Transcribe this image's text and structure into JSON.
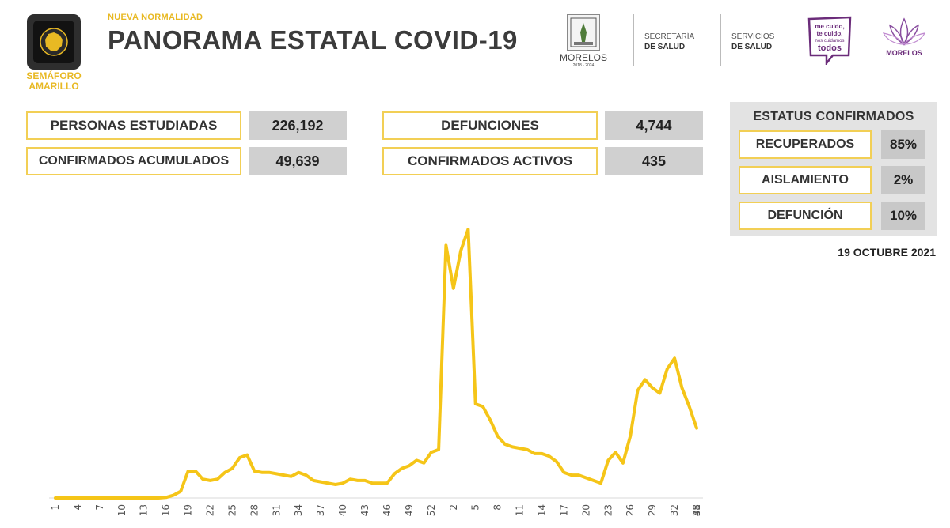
{
  "header": {
    "traffic_light_label_line1": "SEMÁFORO",
    "traffic_light_label_line2": "AMARILLO",
    "kicker": "NUEVA NORMALIDAD",
    "title": "PANORAMA ESTATAL COVID-19",
    "logo_morelos": "MORELOS",
    "logo_morelos_years": "2018 - 2024",
    "secretaria_line1": "SECRETARÍA",
    "secretaria_line2": "DE SALUD",
    "servicios_line1": "SERVICIOS",
    "servicios_line2": "DE SALUD",
    "campaign_line1": "me cuido,",
    "campaign_line2": "te cuido,",
    "campaign_line3": "nos cuidamos",
    "campaign_line4": "todos",
    "lotus_label": "MORELOS",
    "traffic_light_color": "#e8b923"
  },
  "stats": {
    "personas_estudiadas_label": "PERSONAS ESTUDIADAS",
    "personas_estudiadas_value": "226,192",
    "confirmados_acumulados_label": "CONFIRMADOS ACUMULADOS",
    "confirmados_acumulados_value": "49,639",
    "defunciones_label": "DEFUNCIONES",
    "defunciones_value": "4,744",
    "confirmados_activos_label": "CONFIRMADOS ACTIVOS",
    "confirmados_activos_value": "435"
  },
  "status": {
    "title": "ESTATUS CONFIRMADOS",
    "recuperados_label": "RECUPERADOS",
    "recuperados_value": "85%",
    "aislamiento_label": "AISLAMIENTO",
    "aislamiento_value": "2%",
    "defuncion_label": "DEFUNCIÓN",
    "defuncion_value": "10%"
  },
  "date": "19 OCTUBRE 2021",
  "chart_data": {
    "type": "line",
    "title": "",
    "xlabel": "",
    "ylabel": "",
    "line_color": "#f5c518",
    "grid": false,
    "ylim": [
      0,
      100
    ],
    "x_tick_labels": [
      "1",
      "4",
      "7",
      "10",
      "13",
      "16",
      "19",
      "22",
      "25",
      "28",
      "31",
      "34",
      "37",
      "40",
      "43",
      "46",
      "49",
      "52",
      "2",
      "5",
      "8",
      "11",
      "14",
      "17",
      "20",
      "23",
      "26",
      "29",
      "32",
      "35",
      "38",
      "41"
    ],
    "values": [
      0,
      0,
      0,
      0,
      0,
      0,
      0,
      0,
      0,
      0,
      0,
      0,
      0,
      0,
      0,
      0.2,
      1,
      2.5,
      10,
      10,
      7,
      6.5,
      7,
      9.5,
      11,
      15,
      16,
      10,
      9.5,
      9.5,
      9,
      8.5,
      8,
      9.5,
      8.5,
      6.5,
      6,
      5.5,
      5,
      5.5,
      7,
      6.5,
      6.5,
      5.5,
      5.5,
      5.5,
      9,
      11,
      12,
      14,
      13,
      17,
      18,
      94,
      78,
      92,
      100,
      35,
      34,
      29,
      23,
      20,
      19,
      18.5,
      18,
      16.5,
      16.5,
      15.5,
      13.5,
      9.5,
      8.5,
      8.5,
      7.5,
      6.5,
      5.5,
      14,
      17,
      13,
      23,
      40,
      44,
      41,
      39,
      48,
      52,
      41,
      34,
      26
    ]
  }
}
